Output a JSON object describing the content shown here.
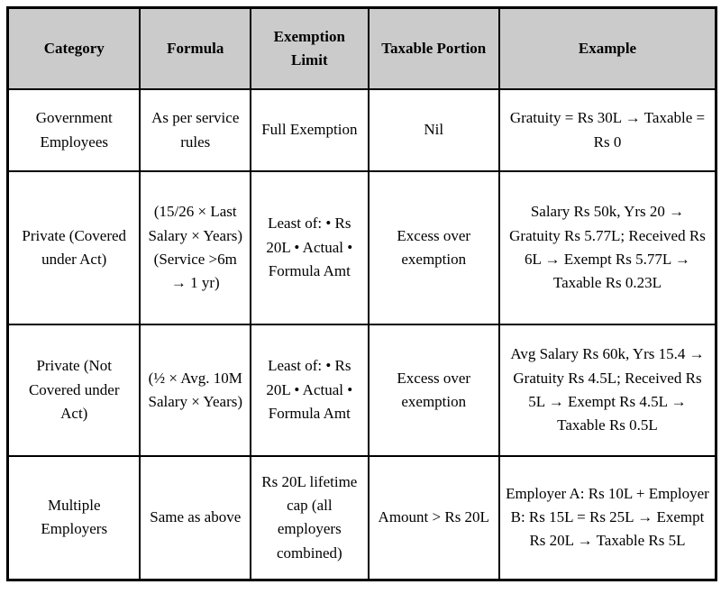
{
  "colors": {
    "header_bg": "#cbcbcb",
    "border": "#000000",
    "text": "#000000",
    "page_bg": "#ffffff"
  },
  "table": {
    "columns": [
      "Category",
      "Formula",
      "Exemption Limit",
      "Taxable Portion",
      "Example"
    ],
    "rows": [
      [
        "Government Employees",
        "As per service rules",
        "Full Exemption",
        "Nil",
        "Gratuity = Rs 30L → Taxable = Rs 0"
      ],
      [
        "Private (Covered under Act)",
        "(15/26 × Last Salary × Years)\n(Service >6m → 1 yr)",
        "Least of: • Rs 20L • Actual • Formula Amt",
        "Excess over exemption",
        "Salary Rs 50k, Yrs 20 → Gratuity Rs 5.77L; Received Rs 6L → Exempt Rs 5.77L → Taxable Rs 0.23L"
      ],
      [
        "Private (Not Covered under Act)",
        "(½ × Avg. 10M Salary × Years)",
        "Least of: • Rs 20L • Actual • Formula Amt",
        "Excess over exemption",
        "Avg Salary Rs 60k, Yrs 15.4 → Gratuity Rs 4.5L; Received Rs 5L → Exempt Rs 4.5L → Taxable Rs 0.5L"
      ],
      [
        "Multiple Employers",
        "Same as above",
        "Rs 20L lifetime cap (all employers combined)",
        "Amount > Rs 20L",
        "Employer A: Rs 10L + Employer B: Rs 15L = Rs 25L → Exempt Rs 20L → Taxable Rs 5L"
      ]
    ]
  }
}
